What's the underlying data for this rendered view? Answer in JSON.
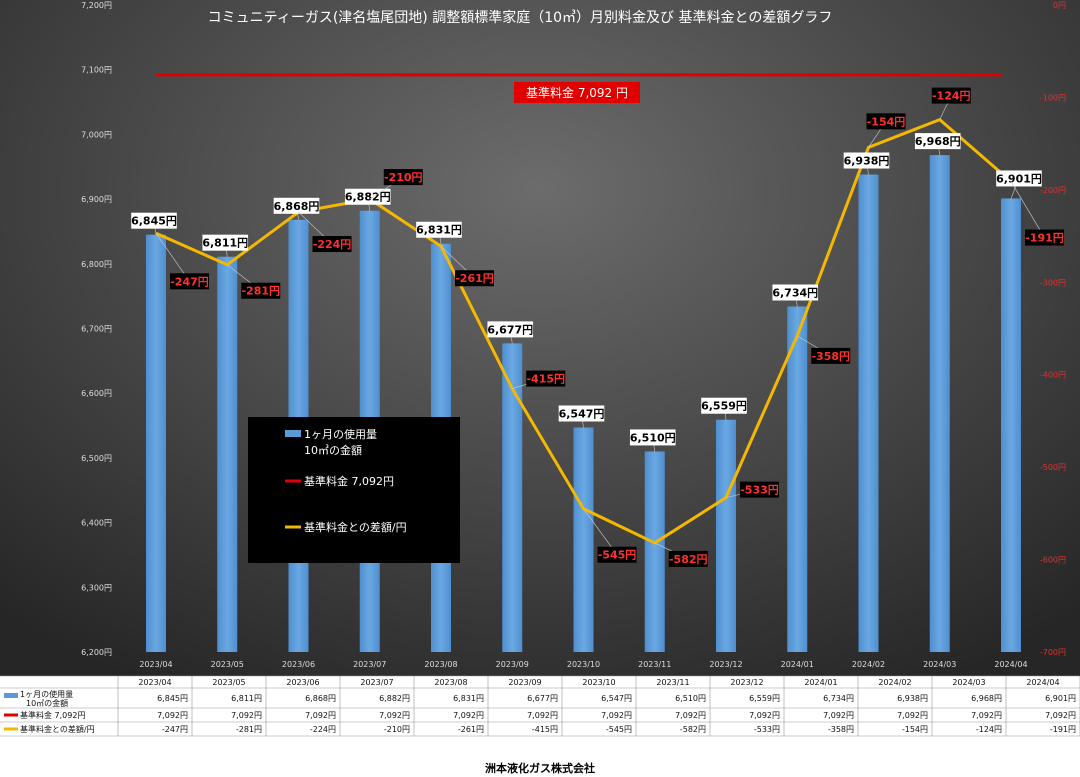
{
  "chart_data": {
    "type": "bar",
    "title": "コミュニティーガス(津名塩尾団地) 調整額標準家庭（10㎥）月別料金及び 基準料金との差額グラフ",
    "categories": [
      "2023/04",
      "2023/05",
      "2023/06",
      "2023/07",
      "2023/08",
      "2023/09",
      "2023/10",
      "2023/11",
      "2023/12",
      "2024/01",
      "2024/02",
      "2024/03",
      "2024/04"
    ],
    "y_left": {
      "min": 6200,
      "max": 7200,
      "step": 100,
      "tick_suffix": "円"
    },
    "y_right": {
      "min": -700,
      "max": 0,
      "step": 100,
      "tick_suffix": "円"
    },
    "series": [
      {
        "name": "1ヶ月の使用量 10㎥の金額",
        "legend_line1": "1ヶ月の使用量",
        "legend_line2": "10㎥の金額",
        "table_line1": "1ヶ月の使用量",
        "table_line2": "10㎥の金額",
        "type": "bar",
        "axis": "left",
        "color": "#5b9bd5",
        "values": [
          6845,
          6811,
          6868,
          6882,
          6831,
          6677,
          6547,
          6510,
          6559,
          6734,
          6938,
          6968,
          6901
        ],
        "labels": [
          "6,845円",
          "6,811円",
          "6,868円",
          "6,882円",
          "6,831円",
          "6,677円",
          "6,547円",
          "6,510円",
          "6,559円",
          "6,734円",
          "6,938円",
          "6,968円",
          "6,901円"
        ]
      },
      {
        "name": "基準料金 7,092円",
        "type": "line",
        "axis": "left",
        "color": "#e00000",
        "values": [
          7092,
          7092,
          7092,
          7092,
          7092,
          7092,
          7092,
          7092,
          7092,
          7092,
          7092,
          7092,
          7092
        ],
        "labels": [
          "7,092円",
          "7,092円",
          "7,092円",
          "7,092円",
          "7,092円",
          "7,092円",
          "7,092円",
          "7,092円",
          "7,092円",
          "7,092円",
          "7,092円",
          "7,092円",
          "7,092円"
        ]
      },
      {
        "name": "基準料金との差額/円",
        "type": "line",
        "axis": "right",
        "color": "#f5b800",
        "values": [
          -247,
          -281,
          -224,
          -210,
          -261,
          -415,
          -545,
          -582,
          -533,
          -358,
          -154,
          -124,
          -191
        ],
        "labels": [
          "-247円",
          "-281円",
          "-224円",
          "-210円",
          "-261円",
          "-415円",
          "-545円",
          "-582円",
          "-533円",
          "-358円",
          "-154円",
          "-124円",
          "-191円"
        ]
      }
    ],
    "base_annotation": "基準料金 7,092 円",
    "legend_position": "center-left",
    "grid": false
  },
  "footer": "洲本液化ガス株式会社"
}
